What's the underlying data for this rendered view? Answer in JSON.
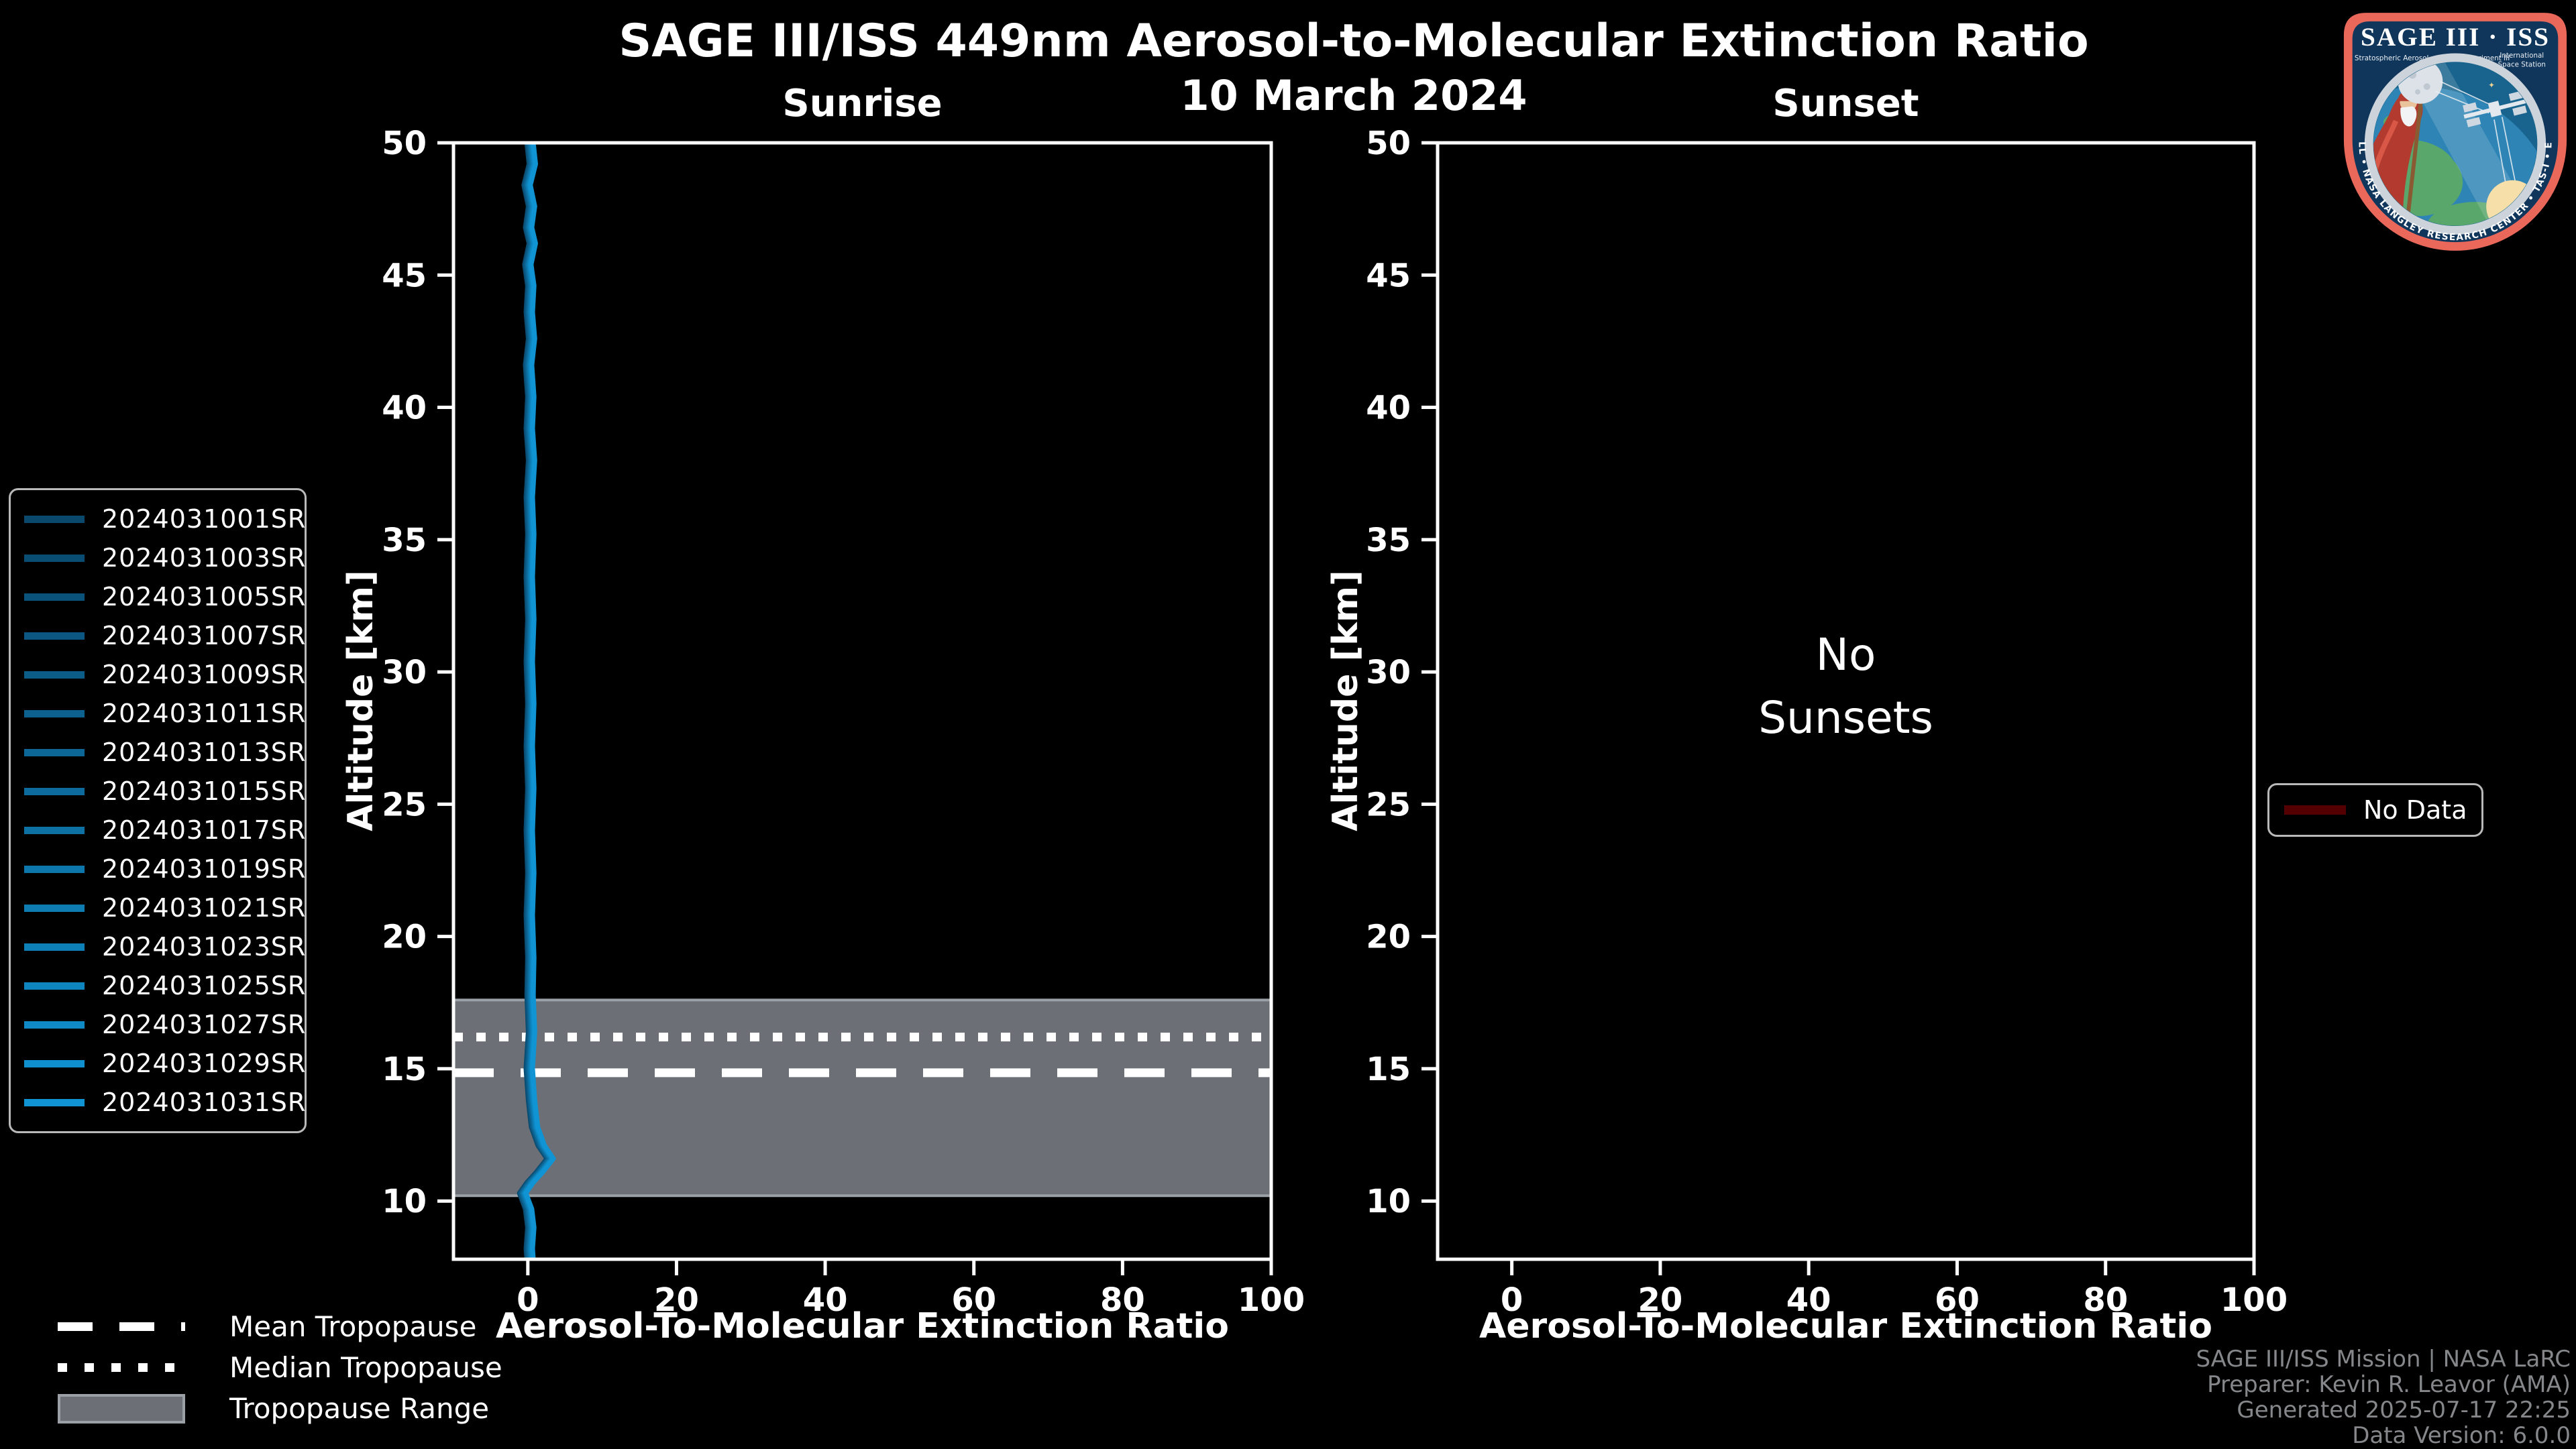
{
  "header": {
    "title": "SAGE III/ISS 449nm Aerosol-to-Molecular Extinction Ratio",
    "date": "10 March 2024"
  },
  "panels": [
    {
      "title": "Sunrise",
      "xlabel": "Aerosol-To-Molecular Extinction Ratio",
      "ylabel": "Altitude [km]"
    },
    {
      "title": "Sunset",
      "xlabel": "Aerosol-To-Molecular Extinction Ratio",
      "ylabel": "Altitude [km]",
      "message_line1": "No",
      "message_line2": "Sunsets"
    }
  ],
  "legends": {
    "tropopause": [
      {
        "label": "Mean Tropopause",
        "style": "dashed"
      },
      {
        "label": "Median Tropopause",
        "style": "dotted"
      },
      {
        "label": "Tropopause Range",
        "style": "band"
      }
    ],
    "no_data_label": "No Data",
    "no_data_color": "#550000"
  },
  "footer": {
    "line1": "SAGE III/ISS Mission | NASA LaRC",
    "line2": "Preparer: Kevin R. Leavor (AMA)",
    "line3": "Generated 2025-07-17 22:25",
    "line4": "Data Version: 6.0.0"
  },
  "logo": {
    "title": "SAGE III · ISS",
    "subtitle": "Stratospheric Aerosol and Gas Experiment III",
    "iss_line1": "International",
    "iss_line2": "Space Station",
    "ring_text": "BALL • NASA LANGLEY RESEARCH CENTER • TAS-I • ESA",
    "star_glyph": "✦",
    "border_color": "#e9685a",
    "navy_color": "#10365c"
  },
  "chart_data": [
    {
      "type": "line",
      "title": "Sunrise",
      "xlabel": "Aerosol-To-Molecular Extinction Ratio",
      "ylabel": "Altitude [km]",
      "xlim": [
        -10,
        100
      ],
      "ylim": [
        7.8,
        50
      ],
      "xticks": [
        0,
        20,
        40,
        60,
        80,
        100
      ],
      "yticks": [
        10,
        15,
        20,
        25,
        30,
        35,
        40,
        45,
        50
      ],
      "grid": false,
      "tropopause": {
        "mean_km": 14.85,
        "median_km": 16.2,
        "range_km": [
          10.2,
          17.6
        ],
        "band_fill": "#6c7076",
        "band_edge": "#9aa0a6",
        "line_color": "#ffffff"
      },
      "profile_points_ratio_km": [
        [
          0.3,
          50
        ],
        [
          0.6,
          49.2
        ],
        [
          -0.1,
          48.4
        ],
        [
          0.5,
          47.6
        ],
        [
          0.1,
          46.8
        ],
        [
          0.6,
          46.2
        ],
        [
          0.0,
          45.4
        ],
        [
          0.4,
          44.6
        ],
        [
          0.2,
          43.6
        ],
        [
          0.5,
          42.6
        ],
        [
          0.1,
          41.6
        ],
        [
          0.4,
          40.4
        ],
        [
          0.2,
          39.2
        ],
        [
          0.5,
          38.0
        ],
        [
          0.2,
          36.6
        ],
        [
          0.4,
          35.2
        ],
        [
          0.2,
          33.6
        ],
        [
          0.4,
          32.0
        ],
        [
          0.2,
          30.4
        ],
        [
          0.4,
          28.8
        ],
        [
          0.2,
          27.2
        ],
        [
          0.4,
          25.6
        ],
        [
          0.2,
          24.0
        ],
        [
          0.4,
          22.4
        ],
        [
          0.2,
          20.8
        ],
        [
          0.4,
          19.2
        ],
        [
          0.3,
          17.8
        ],
        [
          0.5,
          16.4
        ],
        [
          0.2,
          15.0
        ],
        [
          0.5,
          13.8
        ],
        [
          0.9,
          12.8
        ],
        [
          1.8,
          12.1
        ],
        [
          3.0,
          11.6
        ],
        [
          1.6,
          11.1
        ],
        [
          0.3,
          10.7
        ],
        [
          -0.7,
          10.3
        ],
        [
          0.1,
          9.7
        ],
        [
          0.4,
          9.0
        ],
        [
          0.2,
          8.2
        ],
        [
          0.3,
          7.8
        ]
      ],
      "series": [
        {
          "name": "2024031001SR",
          "color": "#0a486c",
          "x_offset": -0.45
        },
        {
          "name": "2024031003SR",
          "color": "#0a4d73",
          "x_offset": -0.39
        },
        {
          "name": "2024031005SR",
          "color": "#0b527a",
          "x_offset": -0.33
        },
        {
          "name": "2024031007SR",
          "color": "#0b5781",
          "x_offset": -0.27
        },
        {
          "name": "2024031009SR",
          "color": "#0c5c88",
          "x_offset": -0.21
        },
        {
          "name": "2024031011SR",
          "color": "#0c618f",
          "x_offset": -0.15
        },
        {
          "name": "2024031013SR",
          "color": "#0c6696",
          "x_offset": -0.09
        },
        {
          "name": "2024031015SR",
          "color": "#0d6b9d",
          "x_offset": -0.03
        },
        {
          "name": "2024031017SR",
          "color": "#0d71a3",
          "x_offset": 0.03
        },
        {
          "name": "2024031019SR",
          "color": "#0d76aa",
          "x_offset": 0.09
        },
        {
          "name": "2024031021SR",
          "color": "#0e7bb1",
          "x_offset": 0.15
        },
        {
          "name": "2024031023SR",
          "color": "#0e80b8",
          "x_offset": 0.21
        },
        {
          "name": "2024031025SR",
          "color": "#0f85bf",
          "x_offset": 0.27
        },
        {
          "name": "2024031027SR",
          "color": "#0f8ac6",
          "x_offset": 0.33
        },
        {
          "name": "2024031029SR",
          "color": "#0f8fcd",
          "x_offset": 0.39
        },
        {
          "name": "2024031031SR",
          "color": "#1094d4",
          "x_offset": 0.45
        }
      ]
    },
    {
      "type": "line",
      "title": "Sunset",
      "xlabel": "Aerosol-To-Molecular Extinction Ratio",
      "ylabel": "Altitude [km]",
      "xlim": [
        -10,
        100
      ],
      "ylim": [
        7.8,
        50
      ],
      "xticks": [
        0,
        20,
        40,
        60,
        80,
        100
      ],
      "yticks": [
        10,
        15,
        20,
        25,
        30,
        35,
        40,
        45,
        50
      ],
      "grid": false,
      "series": [],
      "message": "No Sunsets"
    }
  ]
}
